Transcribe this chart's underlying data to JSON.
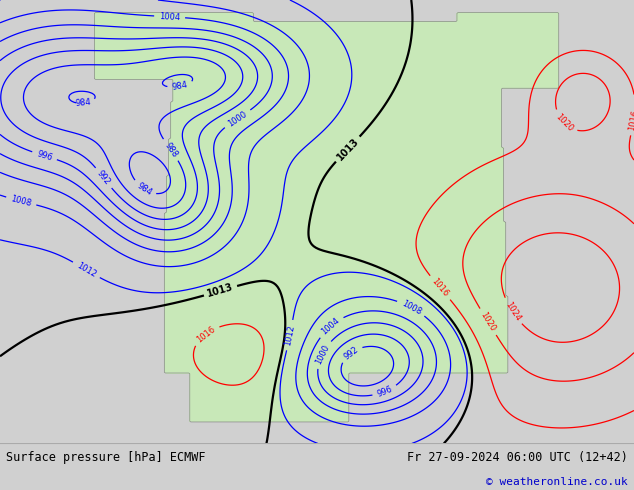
{
  "title_left": "Surface pressure [hPa] ECMWF",
  "title_right": "Fr 27-09-2024 06:00 UTC (12+42)",
  "copyright": "© weatheronline.co.uk",
  "land_color": "#c8e8b8",
  "water_color": "#f5f5f5",
  "footer_bg": "#d0d0d0",
  "map_bg": "#f0f0f0",
  "figsize": [
    6.34,
    4.9
  ],
  "dpi": 100
}
